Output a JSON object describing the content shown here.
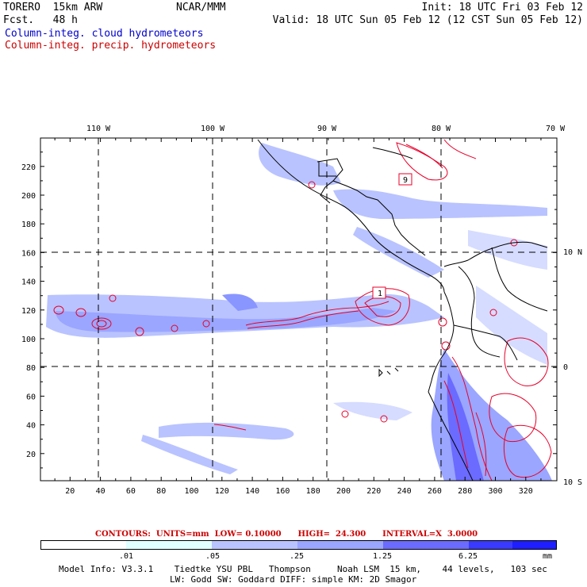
{
  "header": {
    "model_line": "TORERO  15km ARW",
    "fcst_line": "Fcst.   48 h",
    "org": "NCAR/MMM",
    "init": "Init: 18 UTC Fri 03 Feb 12",
    "valid": "Valid: 18 UTC Sun 05 Feb 12 (12 CST Sun 05 Feb 12)",
    "legend_cloud": "Column-integ. cloud hydrometeors",
    "legend_precip": "Column-integ. precip. hydrometeors"
  },
  "colors": {
    "cloud_text": "#0000cc",
    "precip_text": "#cc0000",
    "precip_contour": "#e8002a",
    "cloud_fill": "#9aa6ff"
  },
  "map": {
    "top_lon_labels": [
      "110 W",
      "100 W",
      "90 W",
      "80 W",
      "70 W"
    ],
    "right_lat_labels": [
      "10 N",
      "0",
      "10 S"
    ],
    "y_ticks": [
      "220",
      "200",
      "180",
      "160",
      "140",
      "120",
      "100",
      "80",
      "60",
      "40",
      "20"
    ],
    "x_ticks": [
      "20",
      "40",
      "60",
      "80",
      "100",
      "120",
      "140",
      "160",
      "180",
      "200",
      "220",
      "240",
      "260",
      "280",
      "300",
      "320"
    ],
    "contour_labels": [
      "9",
      "1"
    ]
  },
  "colorbar": {
    "values": [
      ".01",
      ".05",
      ".25",
      "1.25",
      "6.25"
    ],
    "unit": "mm",
    "colors": [
      "#ffffff",
      "#e0ffff",
      "#b9c3ff",
      "#9aa6ff",
      "#6b6bff",
      "#3a3aff",
      "#1e1eff"
    ]
  },
  "contours_info": "CONTOURS:  UNITS=mm  LOW= 0.10000      HIGH=  24.300      INTERVAL=X  3.0000",
  "model_info_1": "Model Info: V3.3.1    Tiedtke YSU PBL   Thompson     Noah LSM  15 km,    44 levels,   103 sec",
  "model_info_2": "LW: Godd SW: Goddard DIFF: simple KM: 2D Smagor"
}
